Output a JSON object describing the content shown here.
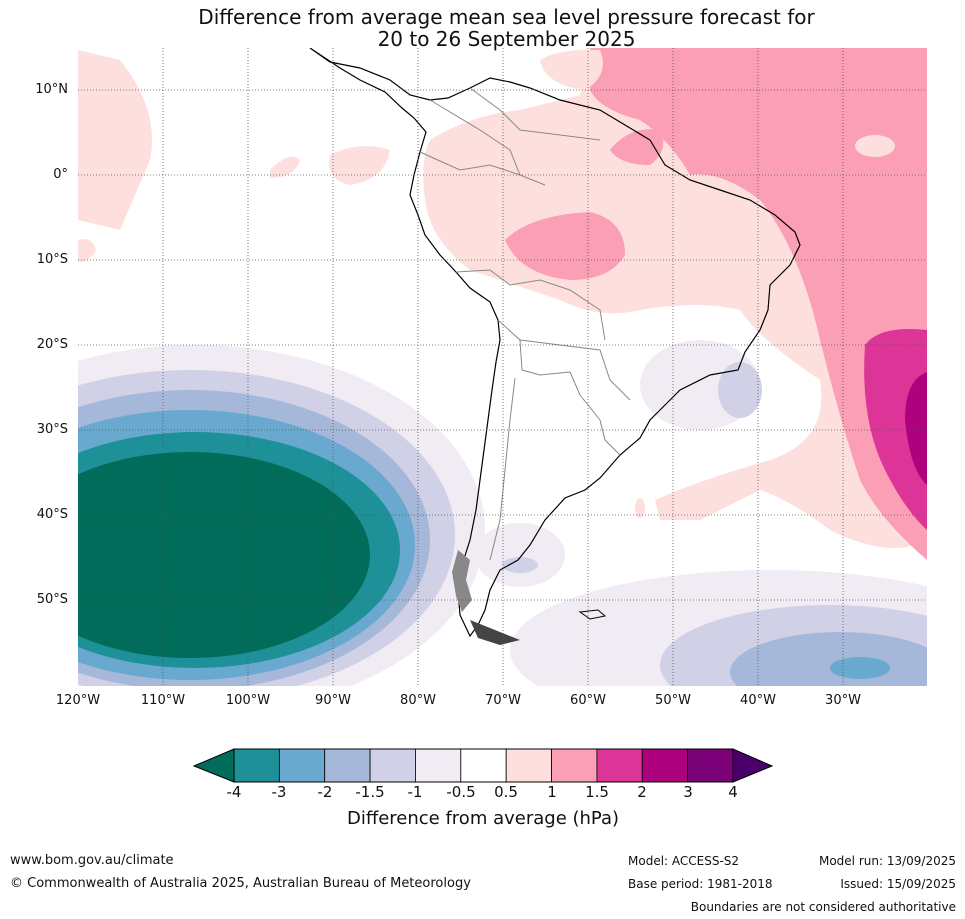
{
  "title": {
    "line1": "Difference from average mean sea level pressure forecast for",
    "line2": "20 to 26 September 2025"
  },
  "axes": {
    "lat_labels": [
      "10°N",
      "0°",
      "10°S",
      "20°S",
      "30°S",
      "40°S",
      "50°S"
    ],
    "lon_labels": [
      "120°W",
      "110°W",
      "100°W",
      "90°W",
      "80°W",
      "70°W",
      "60°W",
      "50°W",
      "40°W",
      "30°W"
    ]
  },
  "colorbar": {
    "ticks": [
      "-4",
      "-3",
      "-2",
      "-1.5",
      "-1",
      "-0.5",
      "0.5",
      "1",
      "1.5",
      "2",
      "3",
      "4"
    ],
    "colors": [
      "#1d9098",
      "#69a9cf",
      "#a6b8da",
      "#d0d1e6",
      "#f1ebf4",
      "#ffffff",
      "#fde0dd",
      "#fa9fb5",
      "#dd3497",
      "#ae017e",
      "#7a0177"
    ],
    "under_color": "#016c59",
    "over_color": "#49006a",
    "label": "Difference from average (hPa)"
  },
  "footer": {
    "website": "www.bom.gov.au/climate",
    "copyright": "© Commonwealth of Australia 2025, Australian Bureau of Meteorology",
    "model": "Model: ACCESS-S2",
    "base_period": "Base period: 1981-2018",
    "model_run": "Model run: 13/09/2025",
    "issued": "Issued: 15/09/2025",
    "disclaimer": "Boundaries are not considered authoritative"
  }
}
